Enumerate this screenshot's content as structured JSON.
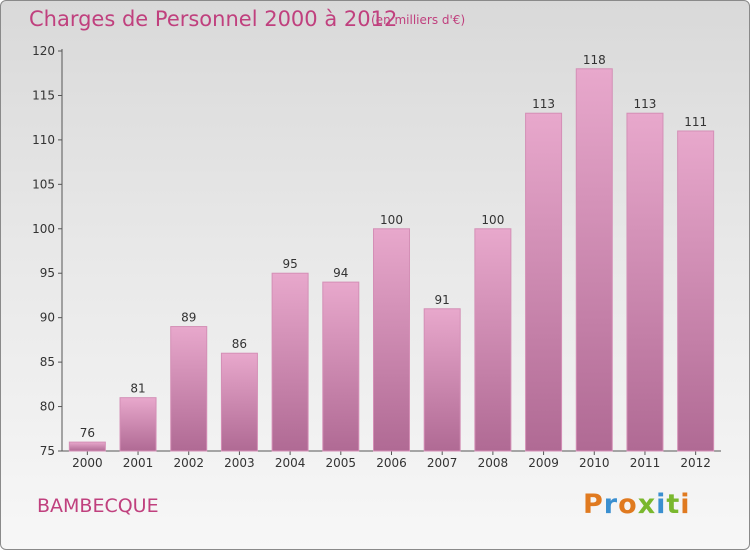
{
  "header": {
    "title": "Charges de Personnel 2000 à 2012",
    "subtitle": "(en milliers d'€)"
  },
  "footer": {
    "commune": "BAMBECQUE",
    "logo": "Proxiti"
  },
  "colors": {
    "title": "#c0407e",
    "bar_top": "#e8a8cc",
    "bar_bottom": "#b06a94",
    "logo_letters": [
      "#e07a20",
      "#3a8fd0",
      "#e07a20",
      "#7ab82e",
      "#3a8fd0",
      "#7ab82e",
      "#e07a20"
    ]
  },
  "chart_data": {
    "type": "bar",
    "categories": [
      "2000",
      "2001",
      "2002",
      "2003",
      "2004",
      "2005",
      "2006",
      "2007",
      "2008",
      "2009",
      "2010",
      "2011",
      "2012"
    ],
    "values": [
      76,
      81,
      89,
      86,
      95,
      94,
      100,
      91,
      100,
      113,
      118,
      113,
      111
    ],
    "data_labels": [
      "76",
      "81",
      "89",
      "86",
      "95",
      "94",
      "100",
      "91",
      "100",
      "113",
      "118",
      "113",
      "111"
    ],
    "ylim": [
      75,
      120
    ],
    "yticks": [
      75,
      80,
      85,
      90,
      95,
      100,
      105,
      110,
      115,
      120
    ],
    "ytick_labels": [
      "75",
      "80",
      "85",
      "90",
      "95",
      "100",
      "105",
      "110",
      "115",
      "120"
    ],
    "xlabel": "",
    "ylabel": "",
    "grid": false,
    "legend": "none"
  }
}
